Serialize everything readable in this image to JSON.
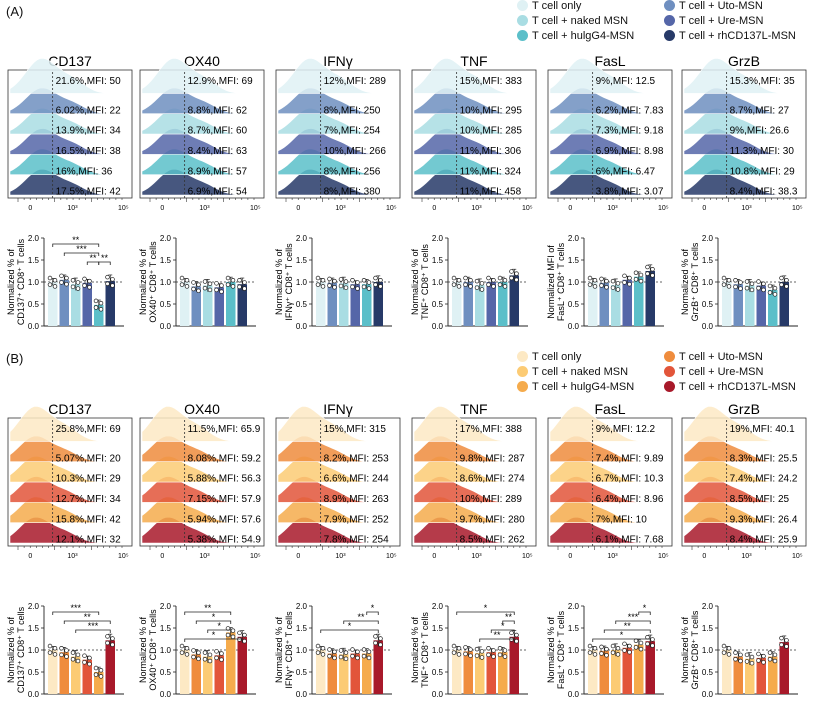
{
  "panelA": {
    "label": "(A)",
    "legend": [
      {
        "label": "T cell only",
        "color": "#dff1f4"
      },
      {
        "label": "T cell + Uto-MSN",
        "color": "#6f8fc0"
      },
      {
        "label": "T cell + naked MSN",
        "color": "#a9dde3"
      },
      {
        "label": "T cell + Ure-MSN",
        "color": "#5566a8"
      },
      {
        "label": "T cell + hulgG4-MSN",
        "color": "#5bbfc9"
      },
      {
        "label": "T cell + rhCD137L-MSN",
        "color": "#273a68"
      }
    ],
    "markers": [
      {
        "title": "CD137",
        "ann": [
          "21.6%,MFI: 50",
          "6.02%,MFI: 22",
          "13.9%,MFI: 34",
          "16.5%,MFI: 38",
          "16%,MFI: 36",
          "17.5%,MFI: 42"
        ],
        "ticks": [
          "0",
          "10³",
          "10⁵"
        ],
        "ylabel1": "Normalized % of",
        "ylabel2": "CD137⁺ CD8⁺ T cells",
        "yticks": [
          "0.0",
          "0.5",
          "1.0",
          "1.5",
          "2.0"
        ],
        "ymax": 2.0,
        "means": [
          1.0,
          1.05,
          0.95,
          0.98,
          0.48,
          1.02
        ],
        "sig": [
          {
            "a": 0,
            "b": 4,
            "t": "**",
            "l": 0
          },
          {
            "a": 1,
            "b": 4,
            "t": "***",
            "l": 1
          },
          {
            "a": 3,
            "b": 4,
            "t": "**",
            "l": 2
          },
          {
            "a": 4,
            "b": 5,
            "t": "**",
            "l": 2
          }
        ]
      },
      {
        "title": "OX40",
        "ann": [
          "12.9%,MFI: 69",
          "8.8%,MFI: 62",
          "8.7%,MFI: 60",
          "8.4%,MFI: 63",
          "8.9%,MFI: 57",
          "6.9%,MFI: 54"
        ],
        "ticks": [
          "0",
          "10³",
          "10⁵"
        ],
        "ylabel1": "Normalized % of",
        "ylabel2": "OX40⁺ CD8⁺ T cells",
        "yticks": [
          "0.0",
          "0.5",
          "1.0",
          "1.5",
          "2.0"
        ],
        "ymax": 2.0,
        "means": [
          1.0,
          0.9,
          0.92,
          0.88,
          1.0,
          0.95
        ],
        "sig": []
      },
      {
        "title": "IFNγ",
        "ann": [
          "12%,MFI: 289",
          "8%,MFI: 250",
          "7%,MFI: 254",
          "10%,MFI: 266",
          "8%,MFI: 256",
          "8%,MFI: 380"
        ],
        "ticks": [
          "0",
          "10³",
          "10⁵"
        ],
        "ylabel1": "Normalized % of",
        "ylabel2": "IFNγ⁺ CD8⁺ T cells",
        "yticks": [
          "0.0",
          "0.5",
          "1.0",
          "1.5",
          "2.0"
        ],
        "ymax": 2.0,
        "means": [
          1.0,
          0.98,
          0.97,
          0.95,
          0.95,
          1.0
        ],
        "sig": []
      },
      {
        "title": "TNF",
        "ann": [
          "15%,MFI: 383",
          "10%,MFI: 295",
          "10%,MFI: 285",
          "11%,MFI: 306",
          "11%,MFI: 324",
          "11%,MFI: 458"
        ],
        "ticks": [
          "0",
          "10³",
          "10⁵"
        ],
        "ylabel1": "Normalized % of",
        "ylabel2": "TNF⁺ CD8⁺ T cells",
        "yticks": [
          "0.0",
          "0.5",
          "1.0",
          "1.5",
          "2.0"
        ],
        "ymax": 2.0,
        "means": [
          1.0,
          1.0,
          0.93,
          1.0,
          1.0,
          1.15
        ],
        "sig": []
      },
      {
        "title": "FasL",
        "ann": [
          "9%,MFI: 12.5",
          "6.2%,MFI: 7.83",
          "7.3%,MFI: 9.18",
          "6.9%,MFI: 8.98",
          "6%,MFI: 6.47",
          "3.8%,MFI: 3.07"
        ],
        "ticks": [
          "0",
          "10³",
          "10⁵"
        ],
        "ylabel1": "Normalized MFI of",
        "ylabel2": "FasL⁺ CD8⁺ T cells",
        "yticks": [
          "0.0",
          "0.5",
          "1.0",
          "1.5",
          "2.0"
        ],
        "ymax": 2.0,
        "means": [
          1.0,
          0.98,
          0.93,
          1.05,
          1.12,
          1.25
        ],
        "sig": []
      },
      {
        "title": "GrzB",
        "ann": [
          "15.3%,MFI: 35",
          "8.7%,MFI: 27",
          "9%,MFI: 26.6",
          "11.3%,MFI: 30",
          "10.8%,MFI: 29",
          "8.4%,MFI: 38.3"
        ],
        "ticks": [
          "0",
          "10³",
          "10⁵"
        ],
        "ylabel1": "Normalized % of",
        "ylabel2": "GrzB⁺ CD8⁺ T cells",
        "yticks": [
          "0.0",
          "0.5",
          "1.0",
          "1.5",
          "2.0"
        ],
        "ymax": 2.0,
        "means": [
          1.0,
          0.95,
          0.92,
          0.92,
          0.82,
          1.0
        ],
        "sig": []
      }
    ]
  },
  "panelB": {
    "label": "(B)",
    "legend": [
      {
        "label": "T cell only",
        "color": "#fde9c4"
      },
      {
        "label": "T cell + Uto-MSN",
        "color": "#ef8c3d"
      },
      {
        "label": "T cell + naked MSN",
        "color": "#fccb74"
      },
      {
        "label": "T cell + Ure-MSN",
        "color": "#e2553a"
      },
      {
        "label": "T cell + hulgG4-MSN",
        "color": "#f5ab4c"
      },
      {
        "label": "T cell + rhCD137L-MSN",
        "color": "#a8192a"
      }
    ],
    "markers": [
      {
        "title": "CD137",
        "ann": [
          "25.8%,MFI: 69",
          "5.07%,MFI: 20",
          "10.3%,MFI: 29",
          "12.7%,MFI: 34",
          "15.8%,MFI: 42",
          "12.1%,MFI: 32"
        ],
        "ticks": [
          "0",
          "10³",
          "10⁵"
        ],
        "ylabel1": "Normalized % of",
        "ylabel2": "CD137⁺ CD8⁺ T cells",
        "yticks": [
          "0.0",
          "0.5",
          "1.0",
          "1.5",
          "2.0"
        ],
        "ymax": 2.0,
        "means": [
          1.0,
          0.95,
          0.85,
          0.78,
          0.5,
          1.22
        ],
        "sig": [
          {
            "a": 0,
            "b": 4,
            "t": "***",
            "l": 0
          },
          {
            "a": 1,
            "b": 5,
            "t": "**",
            "l": 1
          },
          {
            "a": 2,
            "b": 5,
            "t": "***",
            "l": 2
          }
        ]
      },
      {
        "title": "OX40",
        "ann": [
          "11.5%,MFI: 65.9",
          "8.08%,MFI: 59.2",
          "5.88%,MFI: 56.3",
          "7.15%,MFI: 57.9",
          "5.94%,MFI: 57.6",
          "5.38%,MFI: 54.9"
        ],
        "ticks": [
          "0",
          "10³",
          "10⁵"
        ],
        "ylabel1": "Normalized % of",
        "ylabel2": "OX40⁺ CD8⁺ T cells",
        "yticks": [
          "0.0",
          "0.5",
          "1.0",
          "1.5",
          "2.0"
        ],
        "ymax": 2.0,
        "means": [
          1.0,
          0.9,
          0.85,
          0.88,
          1.4,
          1.3
        ],
        "sig": [
          {
            "a": 0,
            "b": 4,
            "t": "**",
            "l": 0
          },
          {
            "a": 1,
            "b": 4,
            "t": "*",
            "l": 1
          },
          {
            "a": 2,
            "b": 4,
            "t": "*",
            "l": 2
          },
          {
            "a": 0,
            "b": 5,
            "t": "*",
            "l": 3
          }
        ]
      },
      {
        "title": "IFNγ",
        "ann": [
          "15%,MFI: 315",
          "8.2%,MFI: 253",
          "6.6%,MFI: 244",
          "8.9%,MFI: 263",
          "7.9%,MFI: 252",
          "7.8%,MFI: 254"
        ],
        "ticks": [
          "0",
          "10³",
          "10⁵"
        ],
        "ylabel1": "Normalized % of",
        "ylabel2": "IFNγ⁺ CD8⁺ T cells",
        "yticks": [
          "0.0",
          "0.5",
          "1.0",
          "1.5",
          "2.0"
        ],
        "ymax": 2.0,
        "means": [
          1.0,
          0.92,
          0.9,
          0.92,
          0.92,
          1.22
        ],
        "sig": [
          {
            "a": 4,
            "b": 5,
            "t": "*",
            "l": 0
          },
          {
            "a": 2,
            "b": 5,
            "t": "**",
            "l": 1
          },
          {
            "a": 0,
            "b": 5,
            "t": "*",
            "l": 2
          }
        ]
      },
      {
        "title": "TNF",
        "ann": [
          "17%,MFI: 388",
          "9.8%,MFI: 287",
          "8.6%,MFI: 274",
          "10%,MFI: 289",
          "9.7%,MFI: 280",
          "8.5%,MFI: 262"
        ],
        "ticks": [
          "0",
          "10³",
          "10⁵"
        ],
        "ylabel1": "Normalized % of",
        "ylabel2": "TNF⁺ CD8⁺ T cells",
        "yticks": [
          "0.0",
          "0.5",
          "1.0",
          "1.5",
          "2.0"
        ],
        "ymax": 2.0,
        "means": [
          1.0,
          0.97,
          0.93,
          0.95,
          0.95,
          1.3
        ],
        "sig": [
          {
            "a": 0,
            "b": 5,
            "t": "*",
            "l": 0
          },
          {
            "a": 4,
            "b": 5,
            "t": "**",
            "l": 1
          },
          {
            "a": 3,
            "b": 5,
            "t": "*",
            "l": 2
          },
          {
            "a": 2,
            "b": 5,
            "t": "**",
            "l": 3
          }
        ]
      },
      {
        "title": "FasL",
        "ann": [
          "9%,MFI: 12.2",
          "7.4%,MFI: 9.89",
          "6.7%,MFI: 10.3",
          "6.4%,MFI: 8.96",
          "7%,MFI: 10",
          "6.1%,MFI: 7.68"
        ],
        "ticks": [
          "0",
          "10³",
          "10⁵"
        ],
        "ylabel1": "Normalized % of",
        "ylabel2": "FasL⁺ CD8⁺ T cells",
        "yticks": [
          "0.0",
          "0.5",
          "1.0",
          "1.5",
          "2.0"
        ],
        "ymax": 2.0,
        "means": [
          1.0,
          0.98,
          1.0,
          1.05,
          1.12,
          1.2
        ],
        "sig": [
          {
            "a": 4,
            "b": 5,
            "t": "*",
            "l": 0
          },
          {
            "a": 2,
            "b": 5,
            "t": "***",
            "l": 1
          },
          {
            "a": 1,
            "b": 5,
            "t": "**",
            "l": 2
          },
          {
            "a": 0,
            "b": 5,
            "t": "*",
            "l": 3
          }
        ]
      },
      {
        "title": "GrzB",
        "ann": [
          "19%,MFI: 40.1",
          "8.3%,MFI: 25.5",
          "7.4%,MFI: 24.2",
          "8.5%,MFI: 25",
          "9.3%,MFI: 26.4",
          "8.4%,MFI: 25.9"
        ],
        "ticks": [
          "0",
          "10³",
          "10⁵"
        ],
        "ylabel1": "Normalized % of",
        "ylabel2": "GrzB⁺ CD8⁺ T cells",
        "yticks": [
          "0.0",
          "0.5",
          "1.0",
          "1.5",
          "2.0"
        ],
        "ymax": 2.0,
        "means": [
          1.0,
          0.85,
          0.8,
          0.82,
          0.85,
          1.18
        ],
        "sig": []
      }
    ]
  }
}
